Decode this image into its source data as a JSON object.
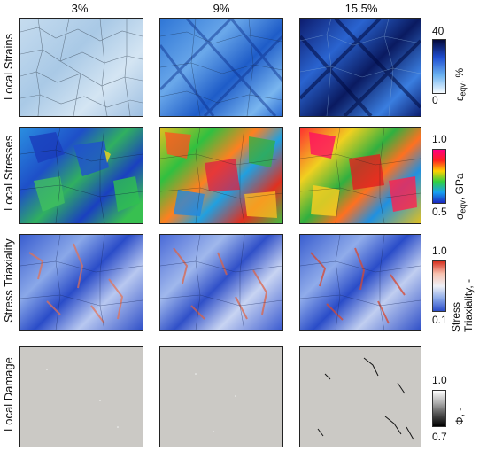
{
  "columns": [
    "3%",
    "9%",
    "15.5%"
  ],
  "rows": [
    {
      "label": "Local Strains"
    },
    {
      "label": "Local Stresses"
    },
    {
      "label": "Stress Triaxiality"
    },
    {
      "label": "Local Damage"
    }
  ],
  "colorbars": [
    {
      "max": "40",
      "min": "0",
      "label_main": "ε",
      "label_sub": "eqv",
      "label_unit": ", %",
      "colors": [
        "#050a3a",
        "#1f4ed1",
        "#6cb2f0",
        "#f5fbff"
      ]
    },
    {
      "max": "1.0",
      "min": "0.5",
      "label_main": "σ",
      "label_sub": "eqv",
      "label_unit": ", GPa",
      "colors": [
        "#ff0080",
        "#ff2020",
        "#ffd000",
        "#30d040",
        "#18a0f0",
        "#1a28c0"
      ]
    },
    {
      "max": "1.0",
      "min": "0.1",
      "label_line1": "Stress",
      "label_line2": "Triaxiality, -",
      "colors": [
        "#d7301f",
        "#f7c3b0",
        "#eef0f6",
        "#8aa8e8",
        "#2a4cc8"
      ]
    },
    {
      "max": "1.0",
      "min": "0.7",
      "label_main": "Φ, -",
      "colors": [
        "#ffffff",
        "#b0b0b0",
        "#505050",
        "#000000"
      ]
    }
  ]
}
